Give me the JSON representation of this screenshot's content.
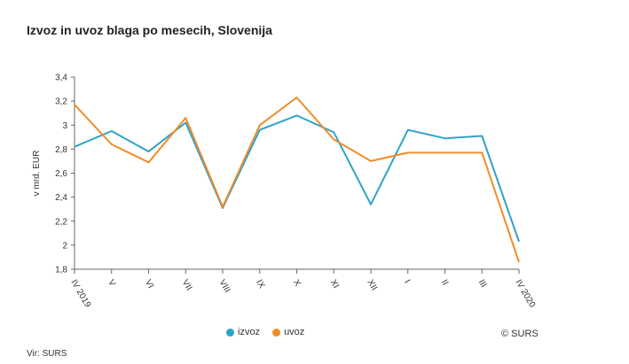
{
  "chart_data": {
    "type": "line",
    "title": "Izvoz in uvoz blaga po mesecih, Slovenija",
    "ylabel": "v mrd. EUR",
    "ylim": [
      1.8,
      3.4
    ],
    "yticks": [
      "3,4",
      "3,2",
      "3",
      "2,8",
      "2,6",
      "2,4",
      "2,2",
      "2",
      "1,8"
    ],
    "ytick_values": [
      3.4,
      3.2,
      3.0,
      2.8,
      2.6,
      2.4,
      2.2,
      2.0,
      1.8
    ],
    "categories": [
      "IV 2019",
      "V",
      "VI",
      "VII",
      "VIII",
      "IX",
      "X",
      "XI",
      "XII",
      "I",
      "II",
      "III",
      "IV 2020"
    ],
    "series": [
      {
        "name": "izvoz",
        "color": "#2ea3c8",
        "values": [
          2.82,
          2.95,
          2.78,
          3.02,
          2.31,
          2.96,
          3.08,
          2.94,
          2.34,
          2.96,
          2.89,
          2.91,
          2.03
        ]
      },
      {
        "name": "uvoz",
        "color": "#f28c28",
        "values": [
          3.17,
          2.84,
          2.69,
          3.06,
          2.32,
          3.0,
          3.23,
          2.88,
          2.7,
          2.77,
          2.77,
          2.77,
          1.86
        ]
      }
    ],
    "grid": false,
    "legend_position": "bottom"
  },
  "copyright": "© SURS",
  "source": "Vir: SURS"
}
